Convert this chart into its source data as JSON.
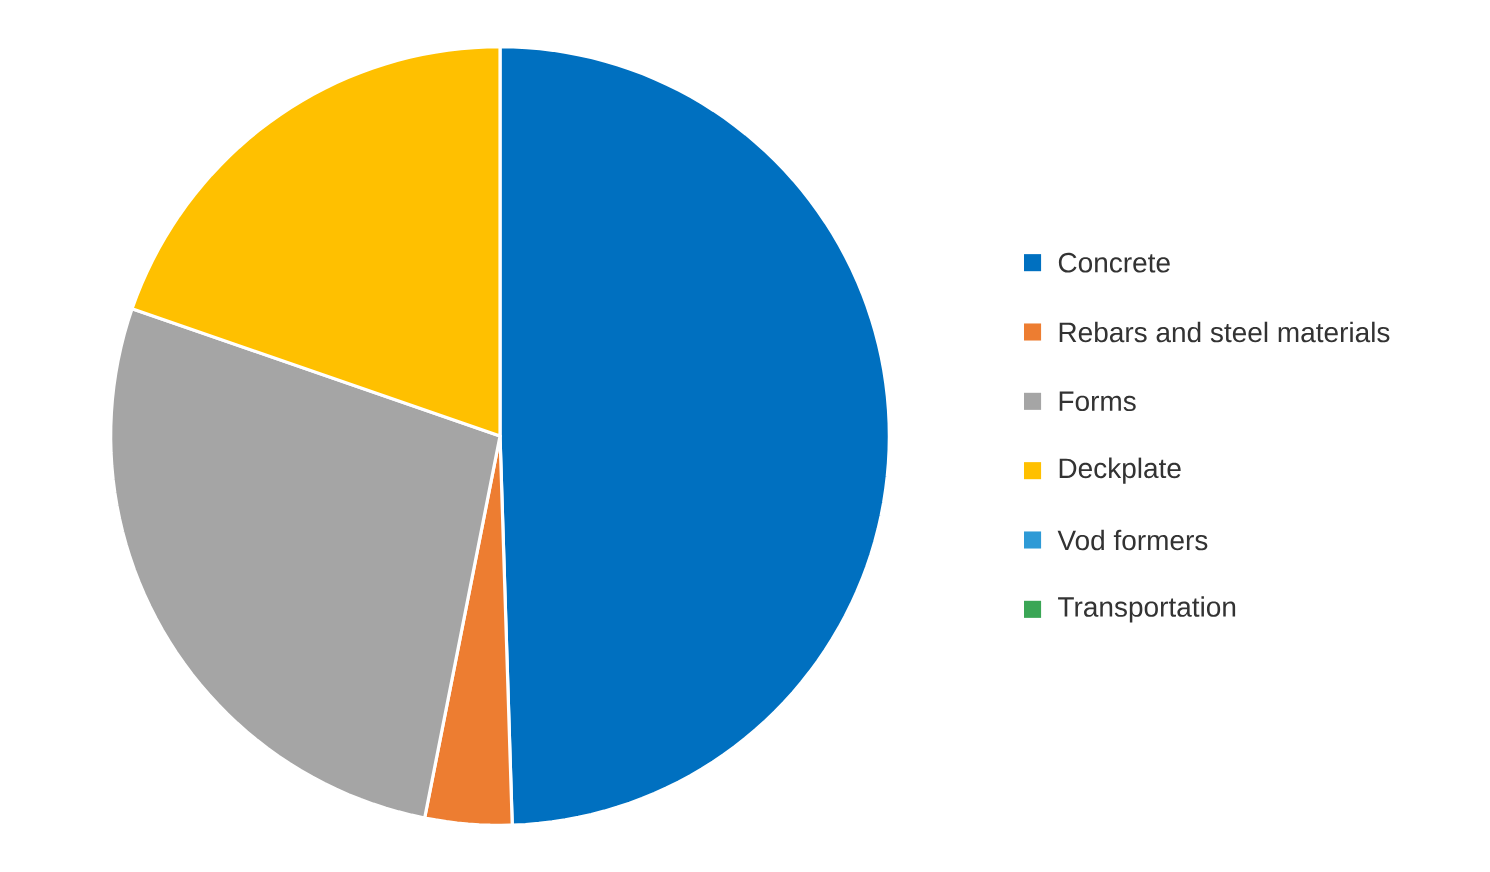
{
  "chart_data": {
    "type": "pie",
    "categories": [
      "Concrete",
      "Rebars and steel materials",
      "Forms",
      "Deckplate",
      "Vod formers",
      "Transportation"
    ],
    "values": [
      49.5,
      3.6,
      27.2,
      19.7,
      0,
      0
    ],
    "colors": [
      "#0070c0",
      "#ed7d31",
      "#a5a5a5",
      "#ffc000",
      "#2e9ad6",
      "#3aa655"
    ],
    "legend": "right"
  }
}
